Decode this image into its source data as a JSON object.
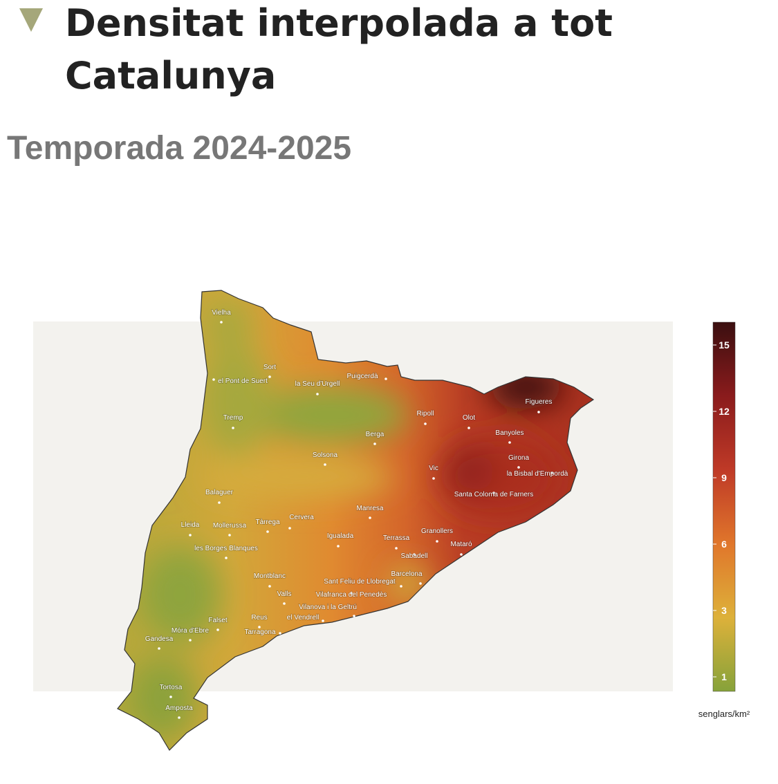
{
  "header": {
    "title_line1": "Densitat interpolada a tot",
    "title_line2": "Catalunya",
    "subtitle": "Temporada 2024-2025"
  },
  "map": {
    "cities": [
      "Vielha",
      "Sort",
      "el Pont de Suert",
      "la Seu d'Urgell",
      "Puigcerdà",
      "Tremp",
      "Ripoll",
      "Olot",
      "Figueres",
      "Banyoles",
      "Berga",
      "Girona",
      "la Bisbal d'Empordà",
      "Solsona",
      "Vic",
      "Santa Coloma de Farners",
      "Balaguer",
      "Manresa",
      "Cervera",
      "Tàrrega",
      "Lleida",
      "Mollerussa",
      "Igualada",
      "Granollers",
      "Terrassa",
      "Mataró",
      "Sabadell",
      "les Borges Blanques",
      "Barcelona",
      "Montblanc",
      "Sant Feliu de Llobregat",
      "Valls",
      "Vilafranca del Penedès",
      "Vilanova i la Geltrú",
      "Reus",
      "el Vendrell",
      "Falset",
      "Tarragona",
      "Móra d'Ebre",
      "Gandesa",
      "Tortosa",
      "Amposta"
    ]
  },
  "legend": {
    "ticks": [
      15,
      12,
      9,
      6,
      3,
      1
    ],
    "unit": "senglars/km²"
  }
}
